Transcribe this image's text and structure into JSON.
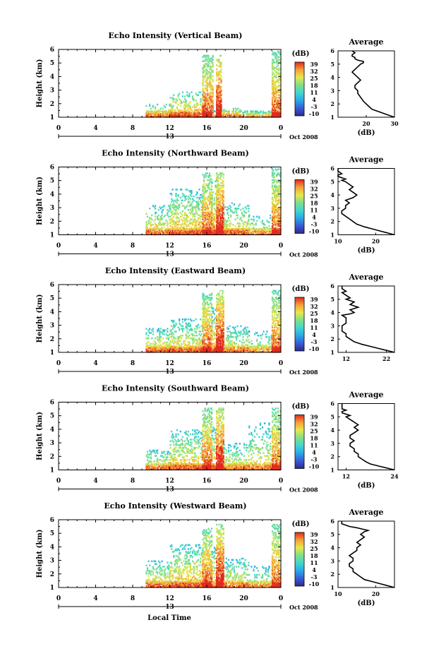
{
  "figure": {
    "xlabel": "Local Time",
    "date_label": "Oct 2008",
    "day_label": "13"
  },
  "colorbar": {
    "title": "(dB)",
    "ticks": [
      "39",
      "32",
      "25",
      "18",
      "11",
      "4",
      "-3",
      "-10"
    ],
    "stops": [
      "#2b2a8e",
      "#3b5bd6",
      "#29a8e8",
      "#43d6d0",
      "#7ee08a",
      "#e8e84a",
      "#f5a13a",
      "#e02a1e"
    ]
  },
  "chart_data": [
    {
      "type": "heatmap",
      "title": "Echo Intensity (Vertical Beam)",
      "xlabel": "Local Time",
      "ylabel": "Height (km)",
      "xlim": [
        0,
        24
      ],
      "ylim": [
        1,
        6
      ],
      "xticks": [
        "0",
        "4",
        "8",
        "12",
        "16",
        "20",
        "0"
      ],
      "yticks": [
        "1",
        "2",
        "3",
        "4",
        "5",
        "6"
      ],
      "zlabel": "(dB)",
      "zlim": [
        -10,
        39
      ],
      "segments": [
        {
          "t0": 9.4,
          "t1": 12.3,
          "top": 2.0,
          "base": 18,
          "density": 0.45
        },
        {
          "t0": 12.0,
          "t1": 15.5,
          "top": 2.9,
          "base": 20,
          "density": 0.4
        },
        {
          "t0": 15.5,
          "t1": 16.6,
          "top": 5.5,
          "base": 25,
          "density": 0.85
        },
        {
          "t0": 16.6,
          "t1": 17.0,
          "top": 1.5,
          "base": 14,
          "density": 0.2
        },
        {
          "t0": 17.0,
          "t1": 17.6,
          "top": 5.5,
          "base": 30,
          "density": 0.95
        },
        {
          "t0": 17.6,
          "t1": 19.7,
          "top": 1.7,
          "base": 18,
          "density": 0.35
        },
        {
          "t0": 19.7,
          "t1": 23.0,
          "top": 1.5,
          "base": 15,
          "density": 0.3
        },
        {
          "t0": 23.0,
          "t1": 23.9,
          "top": 5.8,
          "base": 24,
          "density": 0.8
        }
      ],
      "profile": {
        "title": "Average",
        "xlabel": "(dB)",
        "xlim": [
          10,
          30
        ],
        "xticks": [
          "20",
          "30"
        ],
        "ylim": [
          1,
          6
        ],
        "x": [
          30,
          28,
          26,
          24,
          22,
          21,
          20,
          19,
          18,
          17,
          17,
          16,
          16,
          17,
          18,
          17,
          16,
          15,
          16,
          17,
          18,
          19,
          19,
          17,
          16,
          16,
          15,
          15,
          16,
          15
        ],
        "y": [
          1.0,
          1.15,
          1.3,
          1.45,
          1.6,
          1.8,
          2.0,
          2.2,
          2.5,
          2.8,
          3.0,
          3.2,
          3.4,
          3.6,
          3.8,
          4.0,
          4.2,
          4.4,
          4.6,
          4.8,
          5.0,
          5.1,
          5.2,
          5.3,
          5.4,
          5.5,
          5.6,
          5.7,
          5.85,
          6.0
        ]
      }
    },
    {
      "type": "heatmap",
      "title": "Echo Intensity (Northward Beam)",
      "xlabel": "Local Time",
      "ylabel": "Height (km)",
      "xlim": [
        0,
        24
      ],
      "ylim": [
        1,
        6
      ],
      "xticks": [
        "0",
        "4",
        "8",
        "12",
        "16",
        "20",
        "0"
      ],
      "yticks": [
        "1",
        "2",
        "3",
        "4",
        "5",
        "6"
      ],
      "zlabel": "(dB)",
      "zlim": [
        -10,
        39
      ],
      "segments": [
        {
          "t0": 9.4,
          "t1": 12.0,
          "top": 3.2,
          "base": 17,
          "density": 0.35
        },
        {
          "t0": 12.0,
          "t1": 15.5,
          "top": 4.4,
          "base": 18,
          "density": 0.45
        },
        {
          "t0": 15.5,
          "t1": 16.5,
          "top": 5.5,
          "base": 25,
          "density": 0.85
        },
        {
          "t0": 16.5,
          "t1": 17.0,
          "top": 5.0,
          "base": 20,
          "density": 0.5
        },
        {
          "t0": 17.0,
          "t1": 17.8,
          "top": 5.5,
          "base": 30,
          "density": 0.95
        },
        {
          "t0": 17.8,
          "t1": 20.5,
          "top": 3.4,
          "base": 17,
          "density": 0.4
        },
        {
          "t0": 20.5,
          "t1": 23.0,
          "top": 2.5,
          "base": 15,
          "density": 0.25
        },
        {
          "t0": 23.0,
          "t1": 23.9,
          "top": 5.8,
          "base": 24,
          "density": 0.8
        }
      ],
      "profile": {
        "title": "Average",
        "xlabel": "(dB)",
        "xlim": [
          10,
          25
        ],
        "xticks": [
          "10",
          "20"
        ],
        "ylim": [
          1,
          6
        ],
        "x": [
          25,
          23,
          21,
          19,
          17,
          15,
          14,
          13,
          12,
          11,
          11,
          12,
          12,
          13,
          12,
          14,
          15,
          14,
          13,
          14,
          13,
          12,
          11,
          12,
          11,
          10,
          10,
          11,
          10,
          10
        ],
        "y": [
          1.0,
          1.15,
          1.3,
          1.45,
          1.6,
          1.8,
          2.0,
          2.2,
          2.4,
          2.6,
          2.8,
          3.0,
          3.2,
          3.4,
          3.6,
          3.8,
          4.0,
          4.2,
          4.4,
          4.6,
          4.8,
          5.0,
          5.1,
          5.2,
          5.3,
          5.4,
          5.5,
          5.6,
          5.8,
          6.0
        ]
      }
    },
    {
      "type": "heatmap",
      "title": "Echo Intensity (Eastward Beam)",
      "xlabel": "Local Time",
      "ylabel": "Height (km)",
      "xlim": [
        0,
        24
      ],
      "ylim": [
        1,
        6
      ],
      "xticks": [
        "0",
        "4",
        "8",
        "12",
        "16",
        "20",
        "0"
      ],
      "yticks": [
        "1",
        "2",
        "3",
        "4",
        "5",
        "6"
      ],
      "zlabel": "(dB)",
      "zlim": [
        -10,
        39
      ],
      "segments": [
        {
          "t0": 9.4,
          "t1": 12.0,
          "top": 2.8,
          "base": 17,
          "density": 0.4
        },
        {
          "t0": 12.0,
          "t1": 15.5,
          "top": 3.5,
          "base": 17,
          "density": 0.45
        },
        {
          "t0": 15.5,
          "t1": 16.5,
          "top": 5.3,
          "base": 25,
          "density": 0.85
        },
        {
          "t0": 16.5,
          "t1": 17.0,
          "top": 4.5,
          "base": 18,
          "density": 0.4
        },
        {
          "t0": 17.0,
          "t1": 17.8,
          "top": 5.5,
          "base": 30,
          "density": 0.95
        },
        {
          "t0": 17.8,
          "t1": 20.5,
          "top": 3.0,
          "base": 16,
          "density": 0.4
        },
        {
          "t0": 20.5,
          "t1": 23.0,
          "top": 2.6,
          "base": 14,
          "density": 0.25
        },
        {
          "t0": 23.0,
          "t1": 23.9,
          "top": 5.5,
          "base": 24,
          "density": 0.8
        }
      ],
      "profile": {
        "title": "Average",
        "xlabel": "",
        "xlim": [
          10,
          24
        ],
        "xticks": [
          "12",
          "22"
        ],
        "ylim": [
          1,
          6
        ],
        "x": [
          24,
          22,
          20,
          18,
          16,
          14,
          13,
          12,
          12,
          11,
          11,
          11,
          12,
          12,
          12,
          11,
          13,
          14,
          13,
          15,
          14,
          13,
          14,
          12,
          13,
          12,
          11,
          12,
          11,
          11
        ],
        "y": [
          1.0,
          1.15,
          1.3,
          1.45,
          1.6,
          1.8,
          2.0,
          2.2,
          2.4,
          2.6,
          2.8,
          3.0,
          3.2,
          3.4,
          3.6,
          3.8,
          3.9,
          4.0,
          4.2,
          4.4,
          4.5,
          4.6,
          4.8,
          5.0,
          5.1,
          5.3,
          5.5,
          5.6,
          5.8,
          6.0
        ]
      }
    },
    {
      "type": "heatmap",
      "title": "Echo Intensity (Southward Beam)",
      "xlabel": "Local Time",
      "ylabel": "Height (km)",
      "xlim": [
        0,
        24
      ],
      "ylim": [
        1,
        6
      ],
      "xticks": [
        "0",
        "4",
        "8",
        "12",
        "16",
        "20",
        "0"
      ],
      "yticks": [
        "1",
        "2",
        "3",
        "4",
        "5",
        "6"
      ],
      "zlabel": "(dB)",
      "zlim": [
        -10,
        39
      ],
      "segments": [
        {
          "t0": 9.4,
          "t1": 12.0,
          "top": 2.5,
          "base": 17,
          "density": 0.4
        },
        {
          "t0": 12.0,
          "t1": 15.5,
          "top": 4.0,
          "base": 18,
          "density": 0.45
        },
        {
          "t0": 15.5,
          "t1": 16.5,
          "top": 5.5,
          "base": 25,
          "density": 0.85
        },
        {
          "t0": 16.5,
          "t1": 17.0,
          "top": 4.2,
          "base": 18,
          "density": 0.4
        },
        {
          "t0": 17.0,
          "t1": 17.8,
          "top": 5.5,
          "base": 30,
          "density": 0.95
        },
        {
          "t0": 17.8,
          "t1": 20.5,
          "top": 3.0,
          "base": 16,
          "density": 0.35
        },
        {
          "t0": 20.5,
          "t1": 23.0,
          "top": 4.5,
          "base": 15,
          "density": 0.3
        },
        {
          "t0": 23.0,
          "t1": 23.9,
          "top": 5.5,
          "base": 24,
          "density": 0.8
        }
      ],
      "profile": {
        "title": "Average",
        "xlabel": "(dB)",
        "xlim": [
          10,
          24
        ],
        "xticks": [
          "12",
          "24"
        ],
        "ylim": [
          1,
          6
        ],
        "x": [
          24,
          22,
          20,
          18,
          17,
          16,
          15,
          15,
          14,
          14,
          13,
          13,
          14,
          13,
          13,
          14,
          15,
          14,
          15,
          14,
          13,
          12,
          13,
          12,
          11,
          11,
          12,
          11,
          11,
          11
        ],
        "y": [
          1.0,
          1.15,
          1.3,
          1.45,
          1.6,
          1.8,
          2.0,
          2.2,
          2.4,
          2.6,
          2.8,
          3.0,
          3.2,
          3.4,
          3.6,
          3.8,
          4.0,
          4.2,
          4.4,
          4.6,
          4.8,
          5.0,
          5.1,
          5.2,
          5.3,
          5.4,
          5.5,
          5.6,
          5.8,
          6.0
        ]
      }
    },
    {
      "type": "heatmap",
      "title": "Echo Intensity (Westward Beam)",
      "xlabel": "Local Time",
      "ylabel": "Height (km)",
      "xlim": [
        0,
        24
      ],
      "ylim": [
        1,
        6
      ],
      "xticks": [
        "0",
        "4",
        "8",
        "12",
        "16",
        "20",
        "0"
      ],
      "yticks": [
        "1",
        "2",
        "3",
        "4",
        "5",
        "6"
      ],
      "zlabel": "(dB)",
      "zlim": [
        -10,
        39
      ],
      "segments": [
        {
          "t0": 9.4,
          "t1": 12.0,
          "top": 3.0,
          "base": 17,
          "density": 0.4
        },
        {
          "t0": 12.0,
          "t1": 15.5,
          "top": 4.2,
          "base": 18,
          "density": 0.45
        },
        {
          "t0": 15.5,
          "t1": 16.5,
          "top": 5.3,
          "base": 25,
          "density": 0.85
        },
        {
          "t0": 16.5,
          "t1": 17.0,
          "top": 4.0,
          "base": 18,
          "density": 0.4
        },
        {
          "t0": 17.0,
          "t1": 17.8,
          "top": 5.6,
          "base": 30,
          "density": 0.95
        },
        {
          "t0": 17.8,
          "t1": 20.5,
          "top": 3.2,
          "base": 16,
          "density": 0.35
        },
        {
          "t0": 20.5,
          "t1": 23.0,
          "top": 2.6,
          "base": 14,
          "density": 0.25
        },
        {
          "t0": 23.0,
          "t1": 23.9,
          "top": 5.6,
          "base": 24,
          "density": 0.8
        }
      ],
      "profile": {
        "title": "Average",
        "xlabel": "(dB)",
        "xlim": [
          10,
          25
        ],
        "xticks": [
          "10",
          "20"
        ],
        "ylim": [
          1,
          6
        ],
        "x": [
          25,
          23,
          21,
          19,
          17,
          16,
          15,
          14,
          14,
          13,
          13,
          14,
          14,
          13,
          14,
          15,
          15,
          16,
          15,
          16,
          17,
          16,
          17,
          18,
          15,
          13,
          12,
          11,
          11,
          11
        ],
        "y": [
          1.0,
          1.15,
          1.3,
          1.45,
          1.6,
          1.8,
          2.0,
          2.2,
          2.4,
          2.6,
          2.8,
          3.0,
          3.2,
          3.4,
          3.6,
          3.8,
          4.0,
          4.2,
          4.4,
          4.6,
          4.8,
          5.0,
          5.2,
          5.3,
          5.5,
          5.6,
          5.7,
          5.8,
          5.9,
          6.0
        ]
      }
    }
  ]
}
